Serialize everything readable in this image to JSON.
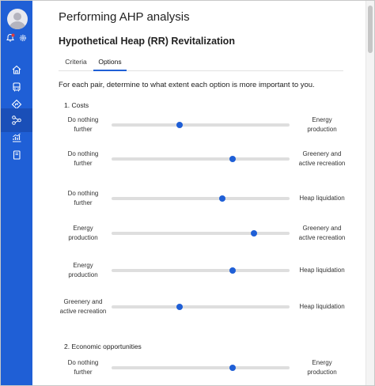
{
  "header": {
    "title": "Performing AHP analysis",
    "subtitle": "Hypothetical Heap (RR) Revitalization"
  },
  "tabs": [
    {
      "label": "Criteria",
      "active": false
    },
    {
      "label": "Options",
      "active": true
    }
  ],
  "instructions": "For each pair, determine to what extent each option is more important to you.",
  "sections": [
    {
      "title": "1. Costs",
      "pairs": [
        {
          "left": "Do nothing further",
          "right": "Energy production",
          "value": 0.38
        },
        {
          "left": "Do nothing further",
          "right": "Greenery and active recreation",
          "value": 0.68
        },
        {
          "left": "Do nothing further",
          "right": "Heap liquidation",
          "value": 0.62
        },
        {
          "left": "Energy production",
          "right": "Greenery and active recreation",
          "value": 0.8
        },
        {
          "left": "Energy production",
          "right": "Heap liquidation",
          "value": 0.68
        },
        {
          "left": "Greenery and active recreation",
          "right": "Heap liquidation",
          "value": 0.38
        }
      ]
    },
    {
      "title": "2. Economic opportunities",
      "pairs": [
        {
          "left": "Do nothing further",
          "right": "Energy production",
          "value": 0.68
        }
      ]
    }
  ],
  "sidebar": {
    "icons": [
      "avatar",
      "notification-bell-icon",
      "settings-gear-icon",
      "home-icon",
      "bus-icon",
      "directions-sign-icon",
      "workflow-nodes-icon",
      "analytics-chart-icon",
      "book-icon"
    ],
    "active": "workflow-nodes-icon"
  },
  "colors": {
    "sidebar": "#1f5fd6",
    "accent": "#1f5fd6",
    "notification": "#e03c3c",
    "track": "#dedede"
  }
}
